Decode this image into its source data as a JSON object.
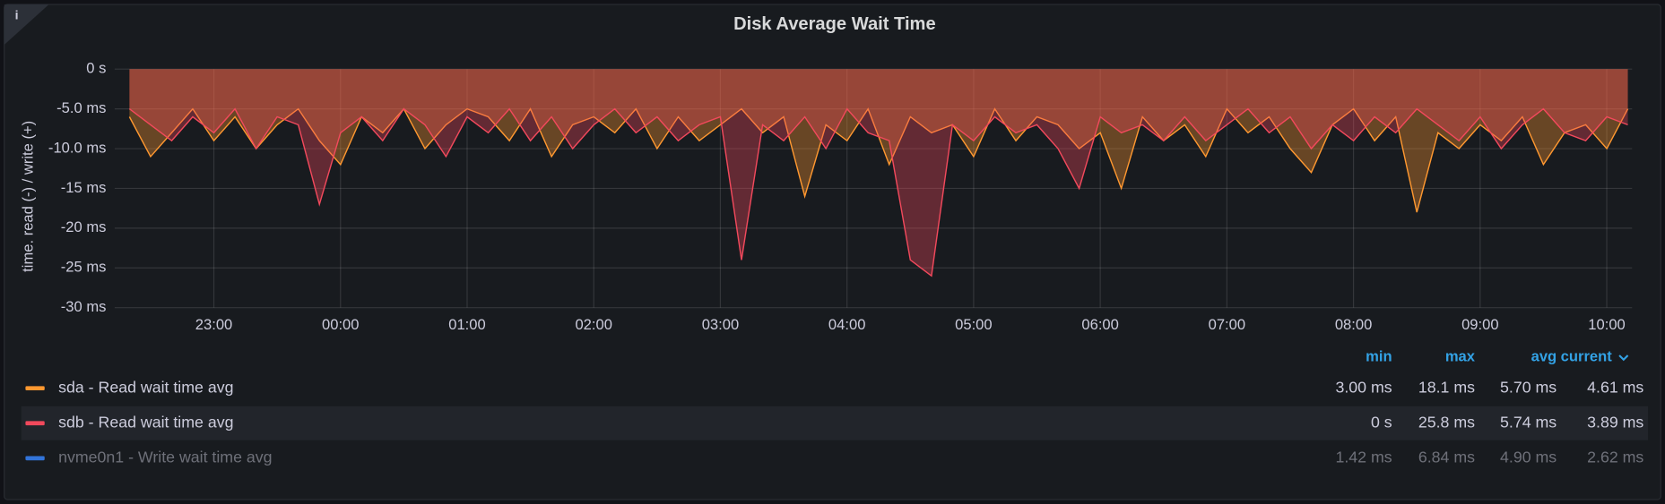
{
  "chart_data": {
    "type": "line",
    "title": "Disk Average Wait Time",
    "ylabel": "time. read (-) / write (+)",
    "x": [
      "22:20",
      "22:30",
      "22:40",
      "22:50",
      "23:00",
      "23:10",
      "23:20",
      "23:30",
      "23:40",
      "23:50",
      "00:00",
      "00:10",
      "00:20",
      "00:30",
      "00:40",
      "00:50",
      "01:00",
      "01:10",
      "01:20",
      "01:30",
      "01:40",
      "01:50",
      "02:00",
      "02:10",
      "02:20",
      "02:30",
      "02:40",
      "02:50",
      "03:00",
      "03:10",
      "03:20",
      "03:30",
      "03:40",
      "03:50",
      "04:00",
      "04:10",
      "04:20",
      "04:30",
      "04:40",
      "04:50",
      "05:00",
      "05:10",
      "05:20",
      "05:30",
      "05:40",
      "05:50",
      "06:00",
      "06:10",
      "06:20",
      "06:30",
      "06:40",
      "06:50",
      "07:00",
      "07:10",
      "07:20",
      "07:30",
      "07:40",
      "07:50",
      "08:00",
      "08:10",
      "08:20",
      "08:30",
      "08:40",
      "08:50",
      "09:00",
      "09:10",
      "09:20",
      "09:30",
      "09:40",
      "09:50",
      "10:00",
      "10:10"
    ],
    "xlim": [
      "22:13",
      "10:12"
    ],
    "xticks": [
      "23:00",
      "00:00",
      "01:00",
      "02:00",
      "03:00",
      "04:00",
      "05:00",
      "06:00",
      "07:00",
      "08:00",
      "09:00",
      "10:00"
    ],
    "ylim": [
      -30,
      0
    ],
    "yticks": [
      {
        "value": 0,
        "label": "0 s"
      },
      {
        "value": -5,
        "label": "-5.0 ms"
      },
      {
        "value": -10,
        "label": "-10.0 ms"
      },
      {
        "value": -15,
        "label": "-15 ms"
      },
      {
        "value": -20,
        "label": "-20 ms"
      },
      {
        "value": -25,
        "label": "-25 ms"
      },
      {
        "value": -30,
        "label": "-30 ms"
      }
    ],
    "grid": true,
    "legend_columns": [
      "min",
      "max",
      "avg",
      "current"
    ],
    "series": [
      {
        "name": "sda - Read wait time avg",
        "color": "#ff9830",
        "fill": true,
        "stats": {
          "min": "3.00 ms",
          "max": "18.1 ms",
          "avg": "5.70 ms",
          "current": "4.61 ms"
        },
        "values": [
          -6,
          -11,
          -8,
          -5,
          -9,
          -6,
          -10,
          -7,
          -5,
          -9,
          -12,
          -6,
          -8,
          -5,
          -10,
          -7,
          -5,
          -6,
          -9,
          -5,
          -11,
          -7,
          -6,
          -8,
          -5,
          -10,
          -6,
          -9,
          -7,
          -5,
          -8,
          -6,
          -16,
          -7,
          -9,
          -5,
          -12,
          -6,
          -8,
          -7,
          -11,
          -5,
          -9,
          -6,
          -7,
          -10,
          -8,
          -15,
          -6,
          -9,
          -7,
          -11,
          -5,
          -8,
          -6,
          -10,
          -13,
          -7,
          -5,
          -9,
          -6,
          -18,
          -8,
          -10,
          -7,
          -9,
          -6,
          -12,
          -8,
          -7,
          -10,
          -5
        ]
      },
      {
        "name": "sdb - Read wait time avg",
        "color": "#f2495c",
        "fill": true,
        "stats": {
          "min": "0 s",
          "max": "25.8 ms",
          "avg": "5.74 ms",
          "current": "3.89 ms"
        },
        "values": [
          -5,
          -7,
          -9,
          -6,
          -8,
          -5,
          -10,
          -6,
          -7,
          -17,
          -8,
          -6,
          -9,
          -5,
          -7,
          -11,
          -6,
          -8,
          -5,
          -9,
          -6,
          -10,
          -7,
          -5,
          -8,
          -6,
          -9,
          -7,
          -6,
          -24,
          -7,
          -9,
          -6,
          -10,
          -5,
          -8,
          -9,
          -24,
          -26,
          -7,
          -9,
          -6,
          -8,
          -7,
          -10,
          -15,
          -6,
          -8,
          -7,
          -9,
          -6,
          -9,
          -7,
          -5,
          -8,
          -6,
          -10,
          -7,
          -9,
          -6,
          -8,
          -5,
          -7,
          -9,
          -6,
          -10,
          -7,
          -5,
          -8,
          -9,
          -6,
          -7
        ]
      },
      {
        "name": "nvme0n1 - Write wait time avg",
        "color": "#3274d9",
        "hidden": true,
        "stats": {
          "min": "1.42 ms",
          "max": "6.84 ms",
          "avg": "4.90 ms",
          "current": "2.62 ms"
        }
      }
    ]
  }
}
